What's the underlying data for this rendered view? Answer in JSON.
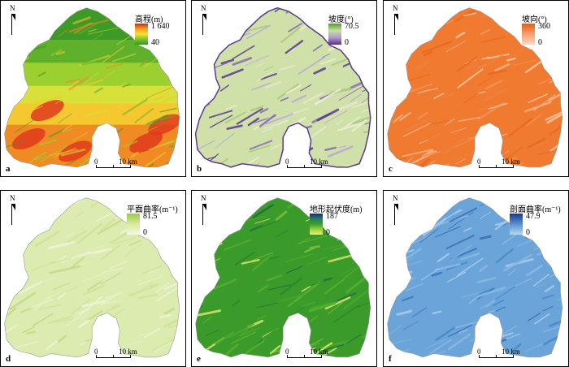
{
  "panels": [
    {
      "letter": "a",
      "legend_title": "高程(m)",
      "legend_max": "1 640",
      "legend_min": "40",
      "ramp": [
        "#d2261c",
        "#f0a020",
        "#f7e030",
        "#7dc030",
        "#2f9a1c"
      ],
      "palette": [
        "#e03a1c",
        "#f08a22",
        "#f5c830",
        "#d8e03a",
        "#9ccf30",
        "#5fb02a",
        "#3d9a26"
      ],
      "theme": "elevation"
    },
    {
      "letter": "b",
      "legend_title": "坡度(°)",
      "legend_max": "70.5",
      "legend_min": "0",
      "ramp": [
        "#5a9a2a",
        "#c8e0a0",
        "#b09ad0",
        "#5a2f8a"
      ],
      "palette": [
        "#cfe0a8",
        "#e8e8cc",
        "#b8a8d8",
        "#8a6ab8",
        "#5a3a90",
        "#a8c878",
        "#f0eed8"
      ],
      "theme": "slope"
    },
    {
      "letter": "c",
      "legend_title": "坡向(°)",
      "legend_max": "360",
      "legend_min": "0",
      "ramp": [
        "#e85a10",
        "#f5a070",
        "#fbd8c0"
      ],
      "palette": [
        "#f07a30",
        "#f59050",
        "#e86a20",
        "#f8b080",
        "#fac8a0",
        "#ee8040"
      ],
      "theme": "aspect"
    },
    {
      "letter": "d",
      "legend_title": "平面曲率(m⁻¹)",
      "legend_max": "81.5",
      "legend_min": "0",
      "ramp": [
        "#9ac848",
        "#d8ea9a",
        "#f4f8e0"
      ],
      "palette": [
        "#dcebb0",
        "#e6f0c4",
        "#cfe39a",
        "#eef5d6",
        "#c4dc8a"
      ],
      "theme": "plan"
    },
    {
      "letter": "e",
      "legend_title": "地形起伏度(m)",
      "legend_max": "187",
      "legend_min": "0",
      "ramp": [
        "#1a2a80",
        "#2a7a6a",
        "#3aa02a",
        "#9ad040",
        "#e8f070"
      ],
      "palette": [
        "#3a9a2a",
        "#2c8a2a",
        "#5ab030",
        "#7cc038",
        "#d8e86a",
        "#1e6a4a",
        "#4aa82c"
      ],
      "theme": "relief"
    },
    {
      "letter": "f",
      "legend_title": "剖面曲率(m⁻¹)",
      "legend_max": "47.9",
      "legend_min": "0",
      "ramp": [
        "#1a3a90",
        "#5a90d0",
        "#b8d8f0"
      ],
      "palette": [
        "#6aa4d8",
        "#8ab8e4",
        "#4a88c8",
        "#a8cdee",
        "#3a70b8",
        "#7aaedc"
      ],
      "theme": "profile"
    }
  ],
  "north_label": "N",
  "scale_zero": "0",
  "scale_length": "10 km"
}
